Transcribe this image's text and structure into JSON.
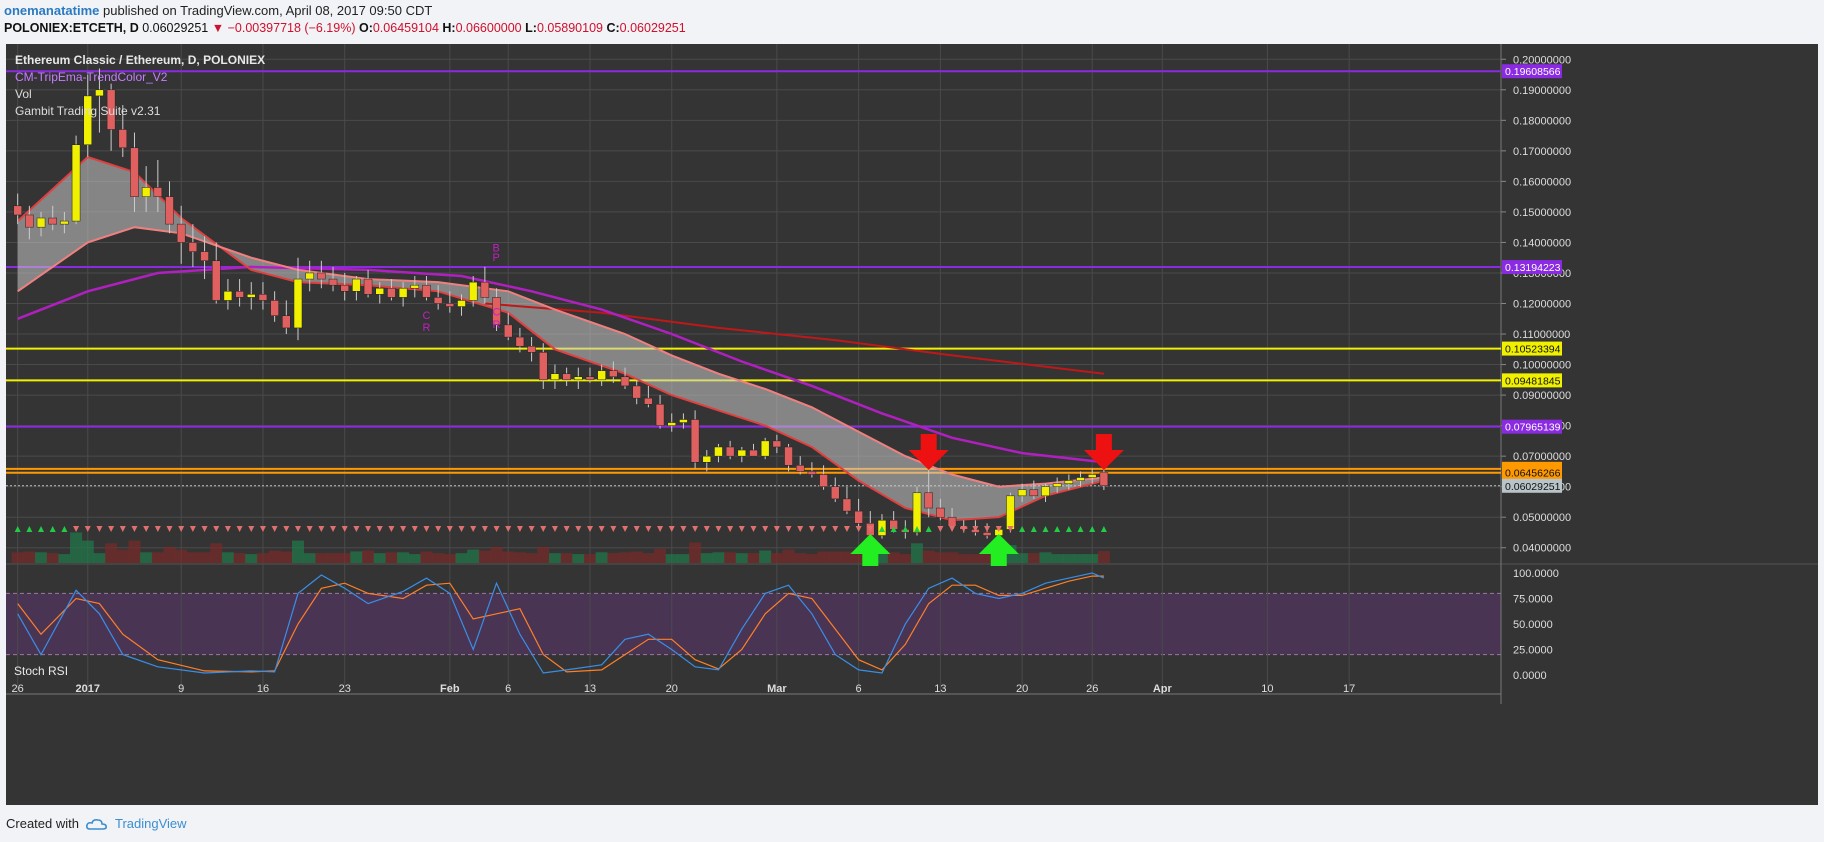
{
  "header": {
    "author": "onemanatatime",
    "published": "published on TradingView.com, April 08, 2017 09:50 CDT",
    "symbol": "POLONIEX:ETCETH, D",
    "last": "0.06029251",
    "change": "▼ −0.00397718 (−6.19%)",
    "o_label": "O:",
    "o": "0.06459104",
    "h_label": "H:",
    "h": "0.06600000",
    "l_label": "L:",
    "l": "0.05890109",
    "c_label": "C:",
    "c": "0.06029251"
  },
  "legend": {
    "title": "Ethereum Classic / Ethereum, D, POLONIEX",
    "indicator1": "CM-TripEma-TrendColor_V2",
    "indicator2": "Vol",
    "indicator3": "Gambit Trading Suite v2.31"
  },
  "stoch_label": "Stoch RSI",
  "footer": {
    "created": "Created with",
    "brand": "TradingView"
  },
  "colors": {
    "background": "#343434",
    "grid": "#4a4a4a",
    "up": "#f0f000",
    "down": "#e06060",
    "purple_line": "#8a2be2",
    "yellow_line": "#f0f000",
    "orange_line": "#ff9900",
    "k_line": "#3a8ee6",
    "d_line": "#ff7f27",
    "stoch_fill": "#4b3458"
  },
  "chart_data": {
    "type": "candlestick",
    "title": "Ethereum Classic / Ethereum, D, POLONIEX",
    "price_axis": {
      "range": [
        0.035,
        0.205
      ],
      "ticks": [
        "0.20000000",
        "0.19000000",
        "0.18000000",
        "0.17000000",
        "0.16000000",
        "0.15000000",
        "0.14000000",
        "0.13000000",
        "0.12000000",
        "0.11000000",
        "0.10000000",
        "0.09000000",
        "0.08000000",
        "0.07000000",
        "0.06000000",
        "0.05000000",
        "0.04000000"
      ],
      "tick_values": [
        0.2,
        0.19,
        0.18,
        0.17,
        0.16,
        0.15,
        0.14,
        0.13,
        0.12,
        0.11,
        0.1,
        0.09,
        0.08,
        0.07,
        0.06,
        0.05,
        0.04
      ]
    },
    "time_axis": {
      "labels": [
        "26",
        "2017",
        "9",
        "16",
        "23",
        "Feb",
        "6",
        "13",
        "20",
        "Mar",
        "6",
        "13",
        "20",
        "26",
        "Apr",
        "10",
        "17"
      ],
      "label_days": [
        0,
        6,
        14,
        21,
        28,
        37,
        42,
        49,
        56,
        65,
        72,
        79,
        86,
        92,
        98,
        107,
        114
      ],
      "day_range": [
        -1,
        127
      ]
    },
    "horizontal_levels": [
      {
        "value": 0.19608566,
        "label": "0.19608566",
        "color": "#8a2be2"
      },
      {
        "value": 0.13194223,
        "label": "0.13194223",
        "color": "#8a2be2"
      },
      {
        "value": 0.10523394,
        "label": "0.10523394",
        "color": "#f0f000"
      },
      {
        "value": 0.09481845,
        "label": "0.09481845",
        "color": "#f0f000"
      },
      {
        "value": 0.07965139,
        "label": "0.07965139",
        "color": "#8a2be2"
      },
      {
        "value": 0.06584793,
        "label": "0.06584793",
        "color": "#ff9900"
      },
      {
        "value": 0.06456266,
        "label": "0.06456266",
        "color": "#ff9900"
      },
      {
        "value": 0.06029251,
        "label": "0.06029251",
        "color": "#b8c4c8"
      }
    ],
    "candles": [
      [
        0,
        0.152,
        0.156,
        0.146,
        0.149
      ],
      [
        1,
        0.149,
        0.152,
        0.141,
        0.145
      ],
      [
        2,
        0.145,
        0.15,
        0.142,
        0.148
      ],
      [
        3,
        0.148,
        0.152,
        0.144,
        0.146
      ],
      [
        4,
        0.146,
        0.15,
        0.143,
        0.147
      ],
      [
        5,
        0.147,
        0.175,
        0.146,
        0.172
      ],
      [
        6,
        0.172,
        0.195,
        0.168,
        0.188
      ],
      [
        7,
        0.188,
        0.197,
        0.176,
        0.19
      ],
      [
        8,
        0.19,
        0.192,
        0.17,
        0.177
      ],
      [
        9,
        0.177,
        0.185,
        0.168,
        0.171
      ],
      [
        10,
        0.171,
        0.176,
        0.15,
        0.155
      ],
      [
        11,
        0.155,
        0.165,
        0.15,
        0.158
      ],
      [
        12,
        0.158,
        0.167,
        0.15,
        0.155
      ],
      [
        13,
        0.155,
        0.16,
        0.143,
        0.146
      ],
      [
        14,
        0.146,
        0.152,
        0.133,
        0.14
      ],
      [
        15,
        0.14,
        0.146,
        0.132,
        0.137
      ],
      [
        16,
        0.137,
        0.142,
        0.128,
        0.134
      ],
      [
        17,
        0.134,
        0.14,
        0.12,
        0.121
      ],
      [
        18,
        0.121,
        0.128,
        0.118,
        0.124
      ],
      [
        19,
        0.124,
        0.128,
        0.119,
        0.122
      ],
      [
        20,
        0.122,
        0.127,
        0.118,
        0.123
      ],
      [
        21,
        0.123,
        0.127,
        0.118,
        0.121
      ],
      [
        22,
        0.121,
        0.124,
        0.114,
        0.116
      ],
      [
        23,
        0.116,
        0.121,
        0.11,
        0.112
      ],
      [
        24,
        0.112,
        0.135,
        0.108,
        0.128
      ],
      [
        25,
        0.128,
        0.134,
        0.124,
        0.13
      ],
      [
        26,
        0.13,
        0.134,
        0.125,
        0.128
      ],
      [
        27,
        0.128,
        0.132,
        0.124,
        0.126
      ],
      [
        28,
        0.126,
        0.13,
        0.121,
        0.124
      ],
      [
        29,
        0.124,
        0.129,
        0.121,
        0.128
      ],
      [
        30,
        0.128,
        0.131,
        0.122,
        0.123
      ],
      [
        31,
        0.123,
        0.127,
        0.12,
        0.125
      ],
      [
        32,
        0.125,
        0.128,
        0.121,
        0.122
      ],
      [
        33,
        0.122,
        0.127,
        0.119,
        0.125
      ],
      [
        34,
        0.125,
        0.129,
        0.122,
        0.126
      ],
      [
        35,
        0.126,
        0.129,
        0.121,
        0.122
      ],
      [
        36,
        0.122,
        0.126,
        0.118,
        0.12
      ],
      [
        37,
        0.12,
        0.124,
        0.117,
        0.119
      ],
      [
        38,
        0.119,
        0.123,
        0.116,
        0.121
      ],
      [
        39,
        0.121,
        0.129,
        0.119,
        0.127
      ],
      [
        40,
        0.127,
        0.132,
        0.12,
        0.122
      ],
      [
        41,
        0.122,
        0.125,
        0.111,
        0.113
      ],
      [
        42,
        0.113,
        0.117,
        0.108,
        0.109
      ],
      [
        43,
        0.109,
        0.112,
        0.104,
        0.106
      ],
      [
        44,
        0.106,
        0.109,
        0.101,
        0.104
      ],
      [
        45,
        0.104,
        0.107,
        0.092,
        0.095
      ],
      [
        46,
        0.095,
        0.1,
        0.092,
        0.097
      ],
      [
        47,
        0.097,
        0.099,
        0.093,
        0.095
      ],
      [
        48,
        0.095,
        0.099,
        0.092,
        0.096
      ],
      [
        49,
        0.096,
        0.099,
        0.094,
        0.095
      ],
      [
        50,
        0.095,
        0.1,
        0.093,
        0.098
      ],
      [
        51,
        0.098,
        0.101,
        0.094,
        0.096
      ],
      [
        52,
        0.096,
        0.099,
        0.092,
        0.093
      ],
      [
        53,
        0.093,
        0.095,
        0.087,
        0.089
      ],
      [
        54,
        0.089,
        0.093,
        0.086,
        0.087
      ],
      [
        55,
        0.087,
        0.09,
        0.079,
        0.08
      ],
      [
        56,
        0.08,
        0.084,
        0.078,
        0.081
      ],
      [
        57,
        0.081,
        0.084,
        0.079,
        0.082
      ],
      [
        58,
        0.082,
        0.085,
        0.066,
        0.068
      ],
      [
        59,
        0.068,
        0.072,
        0.065,
        0.07
      ],
      [
        60,
        0.07,
        0.074,
        0.068,
        0.073
      ],
      [
        61,
        0.073,
        0.075,
        0.069,
        0.07
      ],
      [
        62,
        0.07,
        0.073,
        0.068,
        0.072
      ],
      [
        63,
        0.072,
        0.074,
        0.07,
        0.07
      ],
      [
        64,
        0.07,
        0.076,
        0.069,
        0.075
      ],
      [
        65,
        0.075,
        0.077,
        0.071,
        0.073
      ],
      [
        66,
        0.073,
        0.074,
        0.065,
        0.067
      ],
      [
        67,
        0.067,
        0.07,
        0.064,
        0.065
      ],
      [
        68,
        0.065,
        0.068,
        0.063,
        0.064
      ],
      [
        69,
        0.064,
        0.067,
        0.059,
        0.06
      ],
      [
        70,
        0.06,
        0.063,
        0.055,
        0.056
      ],
      [
        71,
        0.056,
        0.06,
        0.051,
        0.052
      ],
      [
        72,
        0.052,
        0.056,
        0.047,
        0.048
      ],
      [
        73,
        0.048,
        0.052,
        0.042,
        0.044
      ],
      [
        74,
        0.044,
        0.051,
        0.043,
        0.049
      ],
      [
        75,
        0.049,
        0.052,
        0.045,
        0.046
      ],
      [
        76,
        0.046,
        0.049,
        0.043,
        0.045
      ],
      [
        77,
        0.045,
        0.06,
        0.044,
        0.058
      ],
      [
        78,
        0.058,
        0.066,
        0.05,
        0.053
      ],
      [
        79,
        0.053,
        0.056,
        0.049,
        0.05
      ],
      [
        80,
        0.05,
        0.053,
        0.046,
        0.047
      ],
      [
        81,
        0.047,
        0.049,
        0.045,
        0.046
      ],
      [
        82,
        0.046,
        0.049,
        0.044,
        0.045
      ],
      [
        83,
        0.045,
        0.048,
        0.043,
        0.044
      ],
      [
        84,
        0.044,
        0.047,
        0.043,
        0.046
      ],
      [
        85,
        0.046,
        0.058,
        0.045,
        0.057
      ],
      [
        86,
        0.057,
        0.061,
        0.055,
        0.059
      ],
      [
        87,
        0.059,
        0.062,
        0.056,
        0.057
      ],
      [
        88,
        0.057,
        0.061,
        0.055,
        0.06
      ],
      [
        89,
        0.06,
        0.063,
        0.058,
        0.061
      ],
      [
        90,
        0.061,
        0.064,
        0.059,
        0.062
      ],
      [
        91,
        0.062,
        0.065,
        0.06,
        0.063
      ],
      [
        92,
        0.063,
        0.066,
        0.061,
        0.064
      ],
      [
        93,
        0.0646,
        0.066,
        0.0589,
        0.0603
      ]
    ],
    "ema_fast": [
      [
        0,
        0.147
      ],
      [
        6,
        0.168
      ],
      [
        10,
        0.163
      ],
      [
        14,
        0.148
      ],
      [
        20,
        0.131
      ],
      [
        24,
        0.127
      ],
      [
        30,
        0.126
      ],
      [
        36,
        0.124
      ],
      [
        42,
        0.117
      ],
      [
        46,
        0.105
      ],
      [
        52,
        0.097
      ],
      [
        56,
        0.09
      ],
      [
        60,
        0.085
      ],
      [
        64,
        0.08
      ],
      [
        68,
        0.073
      ],
      [
        72,
        0.062
      ],
      [
        76,
        0.053
      ],
      [
        80,
        0.049
      ],
      [
        84,
        0.05
      ],
      [
        88,
        0.057
      ],
      [
        93,
        0.062
      ]
    ],
    "ema_slow": [
      [
        0,
        0.124
      ],
      [
        6,
        0.14
      ],
      [
        10,
        0.145
      ],
      [
        14,
        0.143
      ],
      [
        20,
        0.135
      ],
      [
        24,
        0.131
      ],
      [
        30,
        0.128
      ],
      [
        36,
        0.127
      ],
      [
        42,
        0.124
      ],
      [
        46,
        0.118
      ],
      [
        52,
        0.11
      ],
      [
        56,
        0.103
      ],
      [
        60,
        0.097
      ],
      [
        64,
        0.092
      ],
      [
        68,
        0.086
      ],
      [
        72,
        0.078
      ],
      [
        76,
        0.07
      ],
      [
        80,
        0.064
      ],
      [
        84,
        0.06
      ],
      [
        88,
        0.061
      ],
      [
        93,
        0.063
      ]
    ],
    "ema_long_purple": [
      [
        0,
        0.115
      ],
      [
        6,
        0.124
      ],
      [
        12,
        0.13
      ],
      [
        20,
        0.132
      ],
      [
        30,
        0.131
      ],
      [
        38,
        0.129
      ],
      [
        44,
        0.124
      ],
      [
        50,
        0.118
      ],
      [
        56,
        0.11
      ],
      [
        62,
        0.101
      ],
      [
        68,
        0.093
      ],
      [
        74,
        0.084
      ],
      [
        80,
        0.076
      ],
      [
        86,
        0.071
      ],
      [
        93,
        0.068
      ]
    ],
    "ema_long_red": [
      [
        40,
        0.12
      ],
      [
        50,
        0.117
      ],
      [
        60,
        0.112
      ],
      [
        70,
        0.108
      ],
      [
        80,
        0.103
      ],
      [
        93,
        0.097
      ]
    ],
    "stoch_rsi": {
      "range": [
        0,
        100
      ],
      "ticks": [
        "100.0000",
        "75.0000",
        "50.0000",
        "25.0000",
        "0.0000"
      ],
      "tick_values": [
        100,
        75,
        50,
        25,
        0
      ],
      "k": [
        [
          0,
          60
        ],
        [
          2,
          20
        ],
        [
          5,
          83
        ],
        [
          7,
          60
        ],
        [
          9,
          20
        ],
        [
          12,
          8
        ],
        [
          16,
          2
        ],
        [
          20,
          4
        ],
        [
          22,
          3
        ],
        [
          24,
          80
        ],
        [
          26,
          98
        ],
        [
          28,
          85
        ],
        [
          30,
          70
        ],
        [
          33,
          82
        ],
        [
          35,
          95
        ],
        [
          37,
          80
        ],
        [
          39,
          25
        ],
        [
          41,
          90
        ],
        [
          43,
          40
        ],
        [
          45,
          2
        ],
        [
          47,
          5
        ],
        [
          50,
          10
        ],
        [
          52,
          35
        ],
        [
          54,
          40
        ],
        [
          56,
          25
        ],
        [
          58,
          8
        ],
        [
          60,
          5
        ],
        [
          62,
          45
        ],
        [
          64,
          80
        ],
        [
          66,
          88
        ],
        [
          68,
          60
        ],
        [
          70,
          20
        ],
        [
          72,
          5
        ],
        [
          74,
          2
        ],
        [
          76,
          50
        ],
        [
          78,
          85
        ],
        [
          80,
          95
        ],
        [
          82,
          80
        ],
        [
          84,
          75
        ],
        [
          86,
          80
        ],
        [
          88,
          90
        ],
        [
          90,
          95
        ],
        [
          92,
          100
        ],
        [
          93,
          95
        ]
      ],
      "d": [
        [
          0,
          70
        ],
        [
          2,
          40
        ],
        [
          5,
          75
        ],
        [
          7,
          70
        ],
        [
          9,
          40
        ],
        [
          12,
          15
        ],
        [
          16,
          4
        ],
        [
          20,
          3
        ],
        [
          22,
          4
        ],
        [
          24,
          50
        ],
        [
          26,
          85
        ],
        [
          28,
          90
        ],
        [
          30,
          80
        ],
        [
          33,
          75
        ],
        [
          35,
          88
        ],
        [
          37,
          90
        ],
        [
          39,
          55
        ],
        [
          41,
          60
        ],
        [
          43,
          65
        ],
        [
          45,
          20
        ],
        [
          47,
          3
        ],
        [
          50,
          5
        ],
        [
          52,
          20
        ],
        [
          54,
          35
        ],
        [
          56,
          35
        ],
        [
          58,
          15
        ],
        [
          60,
          6
        ],
        [
          62,
          25
        ],
        [
          64,
          60
        ],
        [
          66,
          80
        ],
        [
          68,
          75
        ],
        [
          70,
          45
        ],
        [
          72,
          15
        ],
        [
          74,
          5
        ],
        [
          76,
          30
        ],
        [
          78,
          70
        ],
        [
          80,
          88
        ],
        [
          82,
          88
        ],
        [
          84,
          78
        ],
        [
          86,
          78
        ],
        [
          88,
          85
        ],
        [
          90,
          92
        ],
        [
          92,
          97
        ],
        [
          93,
          97
        ]
      ]
    },
    "annotations": {
      "arrows_up": [
        73,
        84
      ],
      "arrows_down": [
        78,
        93
      ],
      "signal_text": [
        "C",
        "R",
        "B",
        "P"
      ]
    }
  }
}
